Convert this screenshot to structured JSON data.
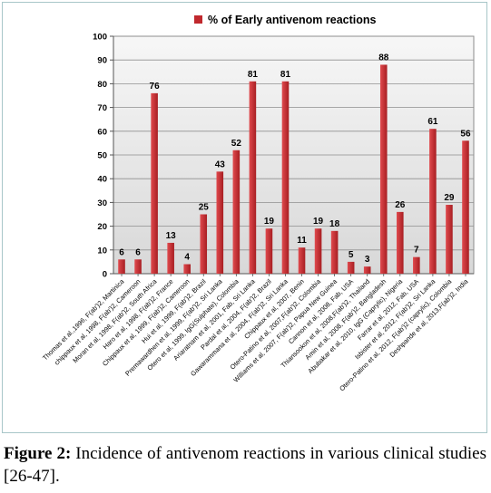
{
  "chart_data": {
    "type": "bar",
    "title": "",
    "xlabel": "",
    "ylabel": "",
    "ylim": [
      0,
      100
    ],
    "yticks": [
      0,
      10,
      20,
      30,
      40,
      50,
      60,
      70,
      80,
      90,
      100
    ],
    "grid": true,
    "legend_position": "top-center",
    "series": [
      {
        "name": "% of Early antivenom reactions",
        "color": "#c0282d",
        "values": [
          6,
          6,
          76,
          13,
          4,
          25,
          43,
          52,
          81,
          19,
          81,
          11,
          19,
          18,
          5,
          3,
          88,
          26,
          7,
          61,
          29,
          56
        ]
      }
    ],
    "categories": [
      "Thomas et al.,1996, F(ab')2, Martinica",
      "chippaux et al, 1998, F(ab')2, Cameroon",
      "Moran et al, 1998, F(ab')2, South Africa",
      "Haro et al, 1998, F(ab')2, France",
      "Chippaux et al, 1999, F(ab')2, Cameroon",
      "Hui et al, 1999, F(ab')2, Brazil",
      "Premawardhen et al, 1999, F(ab')2, Sri Lanka",
      "Otero et al, 1999, IgG(Sulphate), Colombia",
      "Ariaratnam et al, 2001, Fab, Sri Lanka",
      "Pardal et al, 2004, F(ab')2, Brazil",
      "Gawarammana et al, 2004, F(ab')2, Sri Lanka",
      "Chippaux et al, 2007, Benin",
      "Otero-Patino et al, 2007,F(ab')2, Colombia",
      "Williams et al, 2007, F(ab')2, Papua New Guinea",
      "Cannon et al, 2008, Fab, USA",
      "Thiansookon et al, 2008,F(ab')2, Thailand",
      "Amin et al, 2008, F(ab')2, Bangladesh",
      "Abubakar et al, 2010, IgG (Caprylic), Nigeria",
      "Farrar et al, 2012, Fab, USA",
      "Isbister et al, 2012, F(ab')2, Sri Lanka",
      "Otero-Patino et al, 2012, F(ab')2 (caprylic), Colombia",
      "Deshpande et al, 2013,F(ab')2, India"
    ]
  },
  "caption": {
    "label": "Figure 2:",
    "text": " Incidence of antivenom reactions in various clinical studies [26-47]."
  }
}
